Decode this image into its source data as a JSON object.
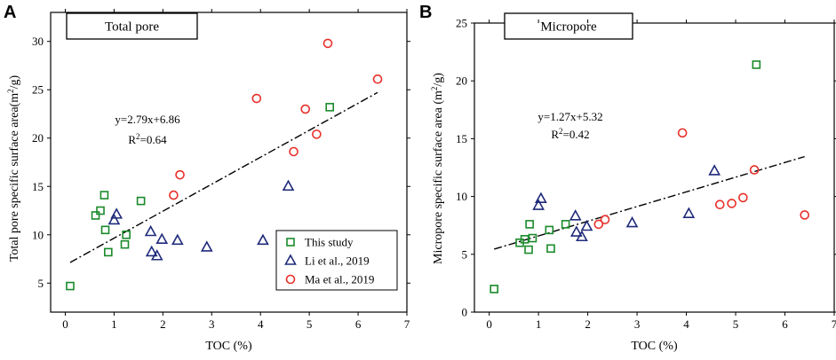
{
  "colors": {
    "this_study": "#1a8a2a",
    "li": "#1f2a7a",
    "ma": "#e8302a"
  },
  "legend": {
    "this_study": "This study",
    "li": "Li et al., 2019",
    "ma": "Ma et al., 2019"
  },
  "chart_data": [
    {
      "panel": "A",
      "type": "scatter",
      "title": "Total pore",
      "xlabel": "TOC (%)",
      "ylabel": "Total pore specific surface area(m²/g)",
      "ylabel_parts": {
        "pre": "Total pore specific surface area(m",
        "sup": "2",
        "post": "/g)"
      },
      "xlim": [
        -0.3,
        7
      ],
      "ylim": [
        2,
        33
      ],
      "xticks": [
        0,
        1,
        2,
        3,
        4,
        5,
        6,
        7
      ],
      "yticks": [
        5,
        10,
        15,
        20,
        25,
        30
      ],
      "equation": "y=2.79x+6.86",
      "r2": {
        "pre": "R",
        "sup": "2",
        "post": "=0.64"
      },
      "trendline": {
        "slope": 2.79,
        "intercept": 6.86,
        "x_range": [
          0.1,
          6.4
        ]
      },
      "legend_position": "bottom-right",
      "series": [
        {
          "name": "This study",
          "key": "this_study",
          "marker": "square",
          "points": [
            [
              0.1,
              4.7
            ],
            [
              0.62,
              12.0
            ],
            [
              0.72,
              12.5
            ],
            [
              0.8,
              14.1
            ],
            [
              0.82,
              10.5
            ],
            [
              0.88,
              8.2
            ],
            [
              1.22,
              9.0
            ],
            [
              1.25,
              10.0
            ],
            [
              1.55,
              13.5
            ],
            [
              5.42,
              23.2
            ]
          ]
        },
        {
          "name": "Li et al., 2019",
          "key": "li",
          "marker": "triangle",
          "points": [
            [
              1.0,
              11.5
            ],
            [
              1.05,
              12.1
            ],
            [
              1.75,
              10.3
            ],
            [
              1.77,
              8.2
            ],
            [
              1.88,
              7.8
            ],
            [
              1.98,
              9.5
            ],
            [
              2.3,
              9.4
            ],
            [
              2.9,
              8.7
            ],
            [
              4.05,
              9.4
            ],
            [
              4.57,
              15.0
            ]
          ]
        },
        {
          "name": "Ma et al., 2019",
          "key": "ma",
          "marker": "circle",
          "points": [
            [
              2.22,
              14.1
            ],
            [
              2.35,
              16.2
            ],
            [
              3.92,
              24.1
            ],
            [
              4.68,
              18.6
            ],
            [
              4.92,
              23.0
            ],
            [
              5.15,
              20.4
            ],
            [
              5.38,
              29.8
            ],
            [
              6.4,
              26.1
            ]
          ]
        }
      ]
    },
    {
      "panel": "B",
      "type": "scatter",
      "title": "Micropore",
      "xlabel": "TOC (%)",
      "ylabel": "Micropore specific surface area (m²/g)",
      "ylabel_parts": {
        "pre": "Micropore specific surface area (m",
        "sup": "2",
        "post": "/g)"
      },
      "xlim": [
        -0.3,
        7
      ],
      "ylim": [
        0,
        25
      ],
      "xticks": [
        0,
        1,
        2,
        3,
        4,
        5,
        6,
        7
      ],
      "yticks": [
        0,
        5,
        10,
        15,
        20,
        25
      ],
      "equation": "y=1.27x+5.32",
      "r2": {
        "pre": "R",
        "sup": "2",
        "post": "=0.42"
      },
      "trendline": {
        "slope": 1.27,
        "intercept": 5.32,
        "x_range": [
          0.1,
          6.4
        ]
      },
      "series": [
        {
          "name": "This study",
          "key": "this_study",
          "marker": "square",
          "points": [
            [
              0.1,
              2.0
            ],
            [
              0.62,
              6.0
            ],
            [
              0.72,
              6.3
            ],
            [
              0.8,
              5.4
            ],
            [
              0.82,
              7.6
            ],
            [
              0.88,
              6.4
            ],
            [
              1.22,
              7.1
            ],
            [
              1.25,
              5.5
            ],
            [
              1.55,
              7.6
            ],
            [
              5.42,
              21.4
            ]
          ]
        },
        {
          "name": "Li et al., 2019",
          "key": "li",
          "marker": "triangle",
          "points": [
            [
              1.0,
              9.2
            ],
            [
              1.05,
              9.8
            ],
            [
              1.75,
              8.3
            ],
            [
              1.77,
              6.9
            ],
            [
              1.88,
              6.5
            ],
            [
              1.98,
              7.4
            ],
            [
              2.9,
              7.7
            ],
            [
              4.05,
              8.5
            ],
            [
              4.57,
              12.2
            ]
          ]
        },
        {
          "name": "Ma et al., 2019",
          "key": "ma",
          "marker": "circle",
          "points": [
            [
              2.22,
              7.6
            ],
            [
              2.35,
              8.0
            ],
            [
              3.92,
              15.5
            ],
            [
              4.68,
              9.3
            ],
            [
              4.92,
              9.4
            ],
            [
              5.15,
              9.9
            ],
            [
              5.38,
              12.3
            ],
            [
              6.4,
              8.4
            ]
          ]
        }
      ]
    }
  ]
}
